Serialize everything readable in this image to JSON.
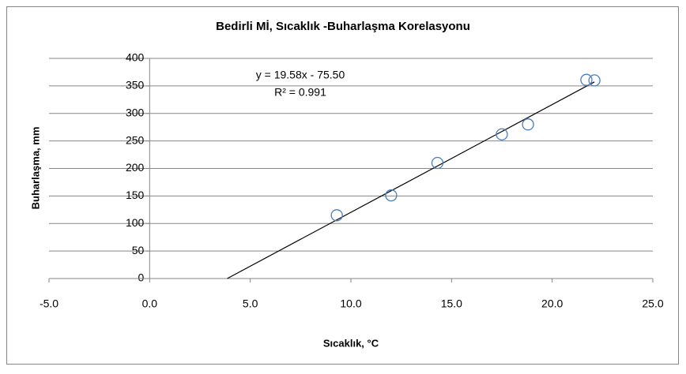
{
  "chart_data": {
    "type": "scatter",
    "title": "Bedirli Mİ, Sıcaklık -Buharlaşma Korelasyonu",
    "xlabel": "Sıcaklık,  °C",
    "ylabel": "Buharlaşma,  mm",
    "series": [
      {
        "name": "Buharlaşma",
        "color": "#4a7ebb",
        "x": [
          9.3,
          12.0,
          14.3,
          17.5,
          18.8,
          21.7,
          22.1
        ],
        "values": [
          115,
          151,
          210,
          262,
          280,
          361,
          360
        ]
      }
    ],
    "trendline": {
      "slope": 19.58,
      "intercept": -75.5,
      "color": "#000000",
      "label": "y = 19.58x - 75.50",
      "r2_label": "R² = 0.991"
    },
    "xlim": [
      -5,
      25
    ],
    "xticks": [
      {
        "value": -5,
        "label": "-5.0"
      },
      {
        "value": 0,
        "label": "0.0"
      },
      {
        "value": 5,
        "label": "5.0"
      },
      {
        "value": 10,
        "label": "10.0"
      },
      {
        "value": 15,
        "label": "15.0"
      },
      {
        "value": 20,
        "label": "20.0"
      },
      {
        "value": 25,
        "label": "25.0"
      }
    ],
    "ylim": [
      0,
      400
    ],
    "yticks": [
      0,
      50,
      100,
      150,
      200,
      250,
      300,
      350,
      400
    ],
    "grid": true
  }
}
